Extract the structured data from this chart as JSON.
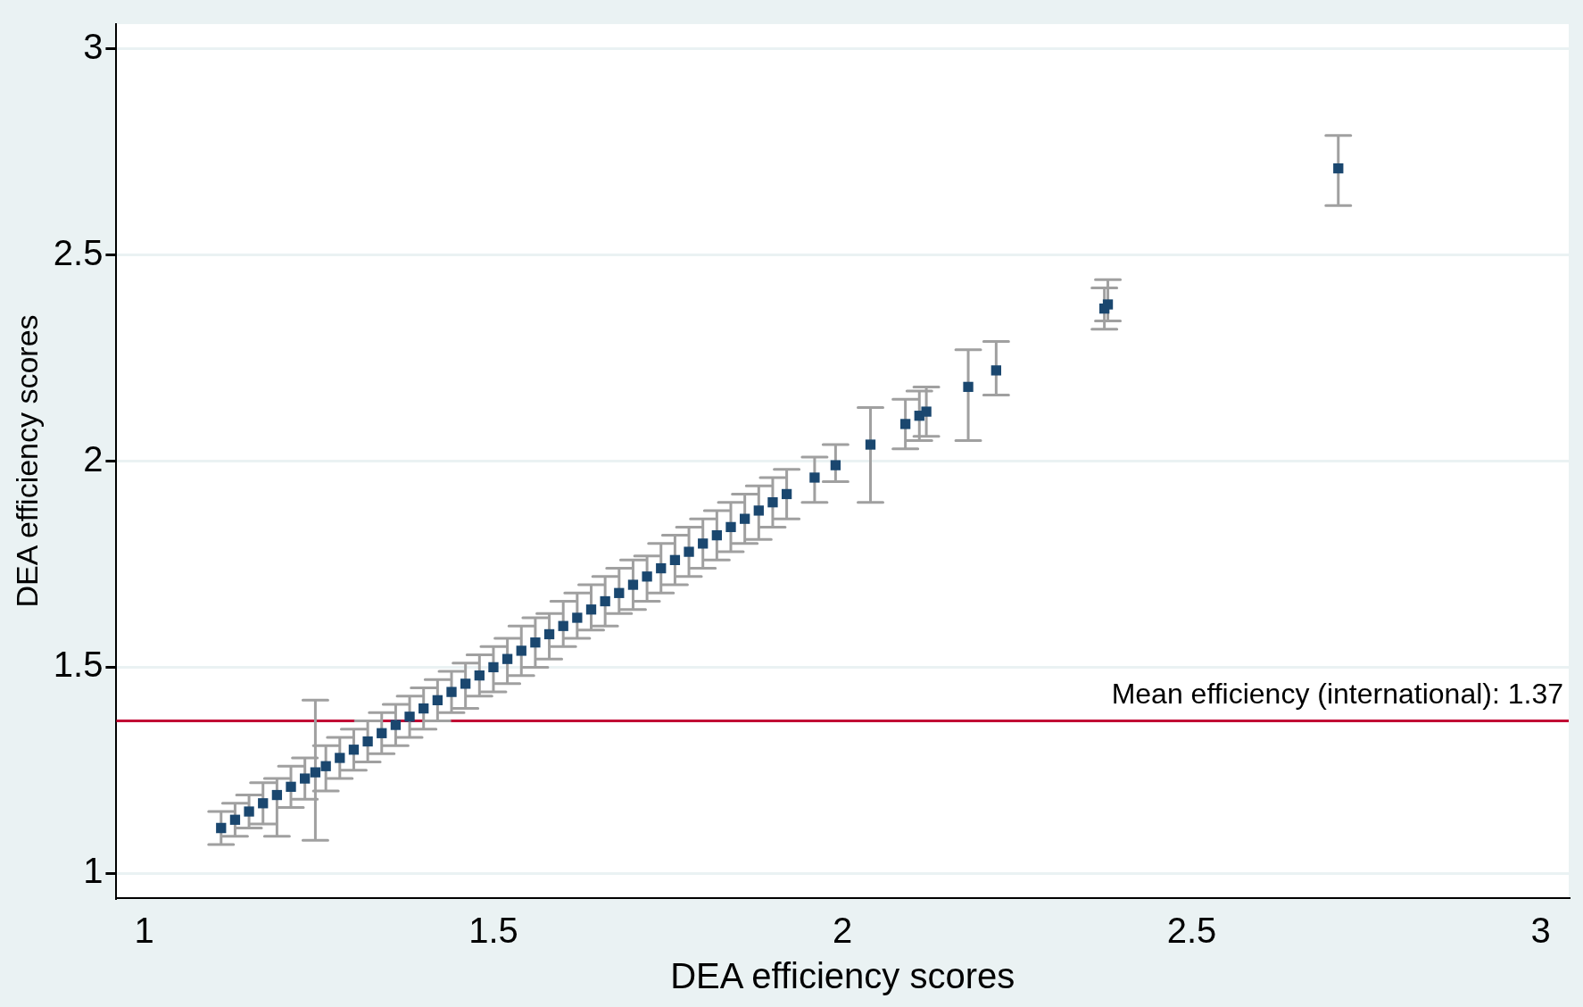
{
  "chart_data": {
    "type": "scatter",
    "xlabel": "DEA efficiency scores",
    "ylabel": "DEA efficiency scores",
    "xlim": [
      0.96,
      3.04
    ],
    "ylim": [
      0.94,
      3.06
    ],
    "xticks": [
      1,
      1.5,
      2,
      2.5,
      3
    ],
    "yticks": [
      1,
      1.5,
      2,
      2.5,
      3
    ],
    "grid": "y",
    "marker": "square",
    "series": [
      {
        "color": "#1a476f",
        "x": [
          1.11,
          1.13,
          1.15,
          1.17,
          1.19,
          1.21,
          1.23,
          1.245,
          1.26,
          1.28,
          1.3,
          1.32,
          1.34,
          1.36,
          1.38,
          1.4,
          1.42,
          1.44,
          1.46,
          1.48,
          1.5,
          1.52,
          1.54,
          1.56,
          1.58,
          1.6,
          1.62,
          1.64,
          1.66,
          1.68,
          1.7,
          1.72,
          1.74,
          1.76,
          1.78,
          1.8,
          1.82,
          1.84,
          1.86,
          1.88,
          1.9,
          1.92,
          1.96,
          1.99,
          2.04,
          2.09,
          2.11,
          2.12,
          2.18,
          2.22,
          2.375,
          2.38,
          2.71
        ],
        "values": [
          1.11,
          1.13,
          1.15,
          1.17,
          1.19,
          1.21,
          1.23,
          1.245,
          1.26,
          1.28,
          1.3,
          1.32,
          1.34,
          1.36,
          1.38,
          1.4,
          1.42,
          1.44,
          1.46,
          1.48,
          1.5,
          1.52,
          1.54,
          1.56,
          1.58,
          1.6,
          1.62,
          1.64,
          1.66,
          1.68,
          1.7,
          1.72,
          1.74,
          1.76,
          1.78,
          1.8,
          1.82,
          1.84,
          1.86,
          1.88,
          1.9,
          1.92,
          1.96,
          1.99,
          2.04,
          2.09,
          2.11,
          2.12,
          2.18,
          2.22,
          2.37,
          2.38,
          2.71
        ],
        "errors": [
          [
            1.07,
            1.15
          ],
          [
            1.09,
            1.17
          ],
          [
            1.11,
            1.19
          ],
          [
            1.12,
            1.22
          ],
          [
            1.09,
            1.23
          ],
          [
            1.16,
            1.26
          ],
          [
            1.18,
            1.28
          ],
          [
            1.08,
            1.42
          ],
          [
            1.2,
            1.31
          ],
          [
            1.23,
            1.33
          ],
          [
            1.25,
            1.35
          ],
          [
            1.27,
            1.37
          ],
          [
            1.29,
            1.39
          ],
          [
            1.31,
            1.41
          ],
          [
            1.33,
            1.43
          ],
          [
            1.35,
            1.45
          ],
          [
            1.37,
            1.47
          ],
          [
            1.39,
            1.49
          ],
          [
            1.4,
            1.51
          ],
          [
            1.43,
            1.53
          ],
          [
            1.44,
            1.55
          ],
          [
            1.46,
            1.57
          ],
          [
            1.48,
            1.6
          ],
          [
            1.5,
            1.62
          ],
          [
            1.52,
            1.63
          ],
          [
            1.55,
            1.66
          ],
          [
            1.57,
            1.68
          ],
          [
            1.59,
            1.7
          ],
          [
            1.6,
            1.72
          ],
          [
            1.63,
            1.74
          ],
          [
            1.64,
            1.76
          ],
          [
            1.66,
            1.77
          ],
          [
            1.68,
            1.8
          ],
          [
            1.7,
            1.82
          ],
          [
            1.72,
            1.84
          ],
          [
            1.74,
            1.86
          ],
          [
            1.76,
            1.88
          ],
          [
            1.78,
            1.9
          ],
          [
            1.8,
            1.92
          ],
          [
            1.81,
            1.94
          ],
          [
            1.84,
            1.96
          ],
          [
            1.86,
            1.98
          ],
          [
            1.9,
            2.01
          ],
          [
            1.95,
            2.04
          ],
          [
            1.9,
            2.13
          ],
          [
            2.03,
            2.15
          ],
          [
            2.05,
            2.17
          ],
          [
            2.06,
            2.18
          ],
          [
            2.05,
            2.27
          ],
          [
            2.16,
            2.29
          ],
          [
            2.32,
            2.42
          ],
          [
            2.34,
            2.44
          ],
          [
            2.62,
            2.79
          ]
        ]
      }
    ],
    "ref_lines": [
      {
        "axis": "y",
        "value": 1.37,
        "label": "Mean efficiency (international): 1.37",
        "color": "#c10534"
      }
    ]
  }
}
